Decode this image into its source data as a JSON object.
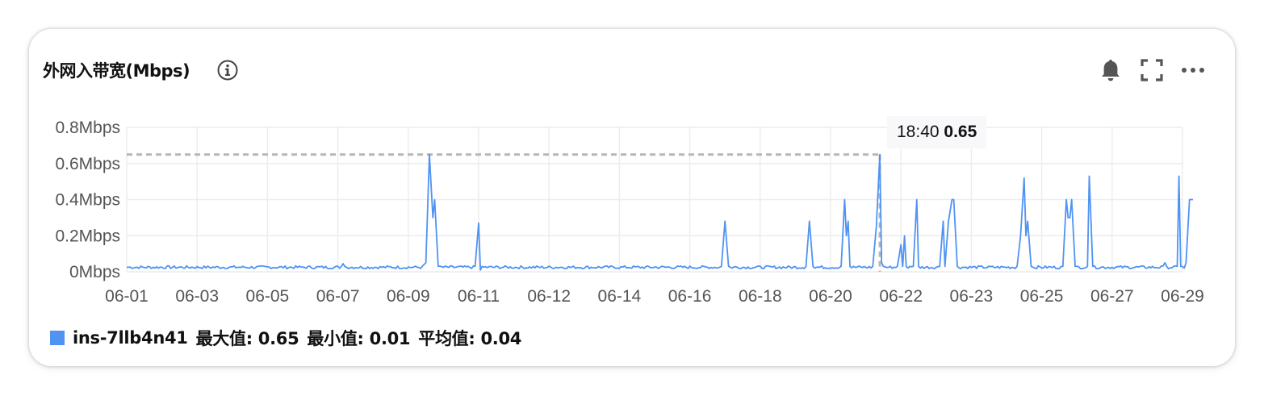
{
  "panel": {
    "title": "外网入带宽(Mbps)",
    "icons": {
      "info": "info-icon",
      "alarm": "bell-icon",
      "fullscreen": "fullscreen-icon",
      "more": "more-icon"
    }
  },
  "colors": {
    "series": "#4f93f3",
    "grid": "#ececec",
    "reference_line": "#b8b8b8",
    "tooltip_bg": "#f7f7f9"
  },
  "tooltip": {
    "time": "18:40",
    "value": "0.65"
  },
  "legend": {
    "series_name": "ins-7llb4n41",
    "max_label": "最大值: 0.65",
    "min_label": "最小值: 0.01",
    "avg_label": "平均值: 0.04"
  },
  "chart_data": {
    "type": "line",
    "title": "外网入带宽(Mbps)",
    "xlabel": "",
    "ylabel": "",
    "y_unit": "Mbps",
    "ylim": [
      0,
      0.8
    ],
    "yticks": [
      0,
      0.2,
      0.4,
      0.6,
      0.8
    ],
    "ytick_labels": [
      "0Mbps",
      "0.2Mbps",
      "0.4Mbps",
      "0.6Mbps",
      "0.8Mbps"
    ],
    "xlim": [
      1,
      31
    ],
    "xtick_positions": [
      1,
      3,
      5,
      7,
      9,
      11,
      13,
      15,
      17,
      19,
      21,
      23,
      25,
      27,
      29,
      31
    ],
    "xtick_labels": [
      "06-01",
      "06-03",
      "06-05",
      "06-07",
      "06-09",
      "06-11",
      "06-12",
      "06-14",
      "06-16",
      "06-18",
      "06-20",
      "06-22",
      "06-23",
      "06-25",
      "06-27",
      "06-29"
    ],
    "grid": true,
    "legend_position": "bottom-left",
    "baseline": 0.025,
    "series": [
      {
        "name": "ins-7llb4n41",
        "points": [
          [
            1.0,
            0.025
          ],
          [
            6.0,
            0.026
          ],
          [
            7.1,
            0.03
          ],
          [
            7.15,
            0.045
          ],
          [
            7.2,
            0.028
          ],
          [
            9.4,
            0.03
          ],
          [
            9.5,
            0.05
          ],
          [
            9.6,
            0.65
          ],
          [
            9.7,
            0.3
          ],
          [
            9.75,
            0.4
          ],
          [
            9.85,
            0.03
          ],
          [
            10.9,
            0.03
          ],
          [
            11.0,
            0.27
          ],
          [
            11.05,
            0.01
          ],
          [
            11.1,
            0.03
          ],
          [
            17.9,
            0.03
          ],
          [
            18.0,
            0.28
          ],
          [
            18.1,
            0.03
          ],
          [
            20.3,
            0.03
          ],
          [
            20.4,
            0.28
          ],
          [
            20.5,
            0.03
          ],
          [
            21.3,
            0.03
          ],
          [
            21.4,
            0.4
          ],
          [
            21.45,
            0.2
          ],
          [
            21.5,
            0.28
          ],
          [
            21.55,
            0.03
          ],
          [
            22.2,
            0.03
          ],
          [
            22.3,
            0.25
          ],
          [
            22.4,
            0.65
          ],
          [
            22.45,
            0.05
          ],
          [
            22.5,
            0.03
          ],
          [
            22.9,
            0.03
          ],
          [
            23.0,
            0.15
          ],
          [
            23.05,
            0.03
          ],
          [
            23.1,
            0.2
          ],
          [
            23.15,
            0.03
          ],
          [
            23.35,
            0.03
          ],
          [
            23.45,
            0.4
          ],
          [
            23.5,
            0.03
          ],
          [
            24.1,
            0.03
          ],
          [
            24.2,
            0.28
          ],
          [
            24.25,
            0.03
          ],
          [
            24.35,
            0.28
          ],
          [
            24.45,
            0.4
          ],
          [
            24.5,
            0.4
          ],
          [
            24.6,
            0.03
          ],
          [
            26.3,
            0.03
          ],
          [
            26.4,
            0.2
          ],
          [
            26.5,
            0.52
          ],
          [
            26.55,
            0.2
          ],
          [
            26.6,
            0.28
          ],
          [
            26.7,
            0.03
          ],
          [
            27.6,
            0.03
          ],
          [
            27.7,
            0.4
          ],
          [
            27.75,
            0.3
          ],
          [
            27.8,
            0.3
          ],
          [
            27.85,
            0.4
          ],
          [
            27.95,
            0.03
          ],
          [
            28.3,
            0.03
          ],
          [
            28.35,
            0.53
          ],
          [
            28.45,
            0.03
          ],
          [
            30.5,
            0.05
          ],
          [
            30.55,
            0.03
          ],
          [
            30.85,
            0.03
          ],
          [
            30.9,
            0.53
          ],
          [
            30.95,
            0.03
          ],
          [
            31.1,
            0.05
          ],
          [
            31.2,
            0.4
          ],
          [
            31.3,
            0.4
          ]
        ]
      }
    ],
    "highlight": {
      "x": 22.4,
      "y": 0.65,
      "label_time": "18:40"
    }
  }
}
